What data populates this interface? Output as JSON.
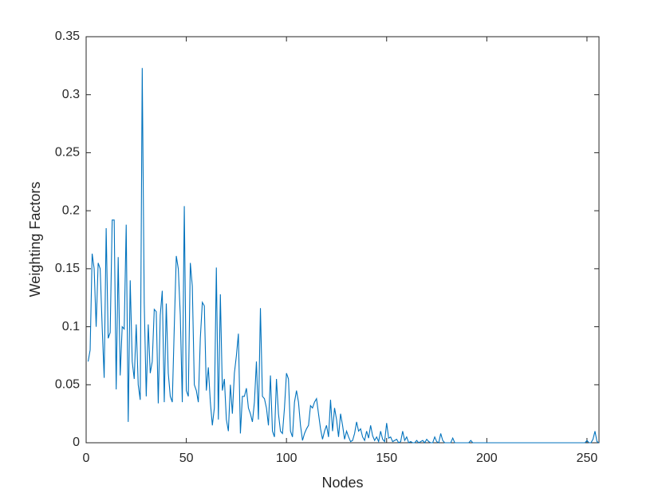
{
  "chart_data": {
    "type": "line",
    "xlabel": "Nodes",
    "ylabel": "Weighting Factors",
    "xlim": [
      0,
      256
    ],
    "ylim": [
      0,
      0.35
    ],
    "xticks": [
      0,
      50,
      100,
      150,
      200,
      250
    ],
    "yticks": [
      0,
      0.05,
      0.1,
      0.15,
      0.2,
      0.25,
      0.3,
      0.35
    ],
    "grid": false,
    "x": [
      1,
      2,
      3,
      4,
      5,
      6,
      7,
      8,
      9,
      10,
      11,
      12,
      13,
      14,
      15,
      16,
      17,
      18,
      19,
      20,
      21,
      22,
      23,
      24,
      25,
      26,
      27,
      28,
      29,
      30,
      31,
      32,
      33,
      34,
      35,
      36,
      37,
      38,
      39,
      40,
      41,
      42,
      43,
      44,
      45,
      46,
      47,
      48,
      49,
      50,
      51,
      52,
      53,
      54,
      55,
      56,
      57,
      58,
      59,
      60,
      61,
      62,
      63,
      64,
      65,
      66,
      67,
      68,
      69,
      70,
      71,
      72,
      73,
      74,
      75,
      76,
      77,
      78,
      79,
      80,
      81,
      82,
      83,
      84,
      85,
      86,
      87,
      88,
      89,
      90,
      91,
      92,
      93,
      94,
      95,
      96,
      97,
      98,
      99,
      100,
      101,
      102,
      103,
      104,
      105,
      106,
      107,
      108,
      109,
      110,
      111,
      112,
      113,
      114,
      115,
      116,
      117,
      118,
      119,
      120,
      121,
      122,
      123,
      124,
      125,
      126,
      127,
      128,
      129,
      130,
      131,
      132,
      133,
      134,
      135,
      136,
      137,
      138,
      139,
      140,
      141,
      142,
      143,
      144,
      145,
      146,
      147,
      148,
      149,
      150,
      151,
      152,
      153,
      154,
      155,
      156,
      157,
      158,
      159,
      160,
      161,
      162,
      163,
      164,
      165,
      166,
      167,
      168,
      169,
      170,
      171,
      172,
      173,
      174,
      175,
      176,
      177,
      178,
      179,
      180,
      181,
      182,
      183,
      184,
      185,
      186,
      187,
      188,
      189,
      190,
      191,
      192,
      193,
      194,
      195,
      196,
      197,
      198,
      199,
      200,
      201,
      202,
      203,
      204,
      205,
      206,
      207,
      208,
      209,
      210,
      211,
      212,
      213,
      214,
      215,
      216,
      217,
      218,
      219,
      220,
      221,
      222,
      223,
      224,
      225,
      226,
      227,
      228,
      229,
      230,
      231,
      232,
      233,
      234,
      235,
      236,
      237,
      238,
      239,
      240,
      241,
      242,
      243,
      244,
      245,
      246,
      247,
      248,
      249,
      250,
      251,
      252,
      253,
      254,
      255,
      256
    ],
    "series": [
      {
        "color": "#0072bd",
        "values": [
          0.07,
          0.08,
          0.163,
          0.15,
          0.1,
          0.155,
          0.15,
          0.1,
          0.056,
          0.185,
          0.09,
          0.095,
          0.192,
          0.192,
          0.046,
          0.16,
          0.058,
          0.1,
          0.098,
          0.188,
          0.018,
          0.14,
          0.07,
          0.055,
          0.102,
          0.05,
          0.037,
          0.323,
          0.12,
          0.04,
          0.102,
          0.06,
          0.07,
          0.115,
          0.113,
          0.034,
          0.11,
          0.131,
          0.035,
          0.12,
          0.06,
          0.04,
          0.035,
          0.1,
          0.161,
          0.15,
          0.11,
          0.035,
          0.204,
          0.045,
          0.04,
          0.155,
          0.135,
          0.05,
          0.045,
          0.035,
          0.09,
          0.121,
          0.118,
          0.045,
          0.065,
          0.035,
          0.015,
          0.03,
          0.151,
          0.02,
          0.128,
          0.045,
          0.055,
          0.02,
          0.01,
          0.05,
          0.025,
          0.06,
          0.075,
          0.094,
          0.008,
          0.04,
          0.04,
          0.047,
          0.03,
          0.025,
          0.018,
          0.035,
          0.07,
          0.02,
          0.116,
          0.04,
          0.038,
          0.03,
          0.015,
          0.058,
          0.01,
          0.005,
          0.055,
          0.025,
          0.01,
          0.008,
          0.03,
          0.06,
          0.055,
          0.01,
          0.005,
          0.035,
          0.045,
          0.035,
          0.015,
          0.002,
          0.008,
          0.012,
          0.015,
          0.032,
          0.03,
          0.035,
          0.038,
          0.025,
          0.012,
          0.003,
          0.01,
          0.015,
          0.005,
          0.037,
          0.01,
          0.03,
          0.02,
          0.005,
          0.025,
          0.015,
          0.003,
          0.01,
          0.005,
          0.001,
          0.002,
          0.008,
          0.018,
          0.01,
          0.012,
          0.005,
          0.002,
          0.01,
          0.004,
          0.015,
          0.006,
          0.002,
          0.005,
          0.001,
          0.01,
          0.003,
          0.001,
          0.017,
          0.004,
          0.005,
          0.001,
          0.002,
          0.003,
          0,
          0.001,
          0.01,
          0.002,
          0.005,
          0,
          0.001,
          0,
          0,
          0.002,
          0,
          0.001,
          0.002,
          0,
          0.003,
          0.001,
          0,
          0,
          0.005,
          0.001,
          0,
          0.008,
          0.002,
          0,
          0,
          0,
          0,
          0.004,
          0,
          0,
          0,
          0,
          0,
          0,
          0,
          0,
          0.002,
          0,
          0,
          0,
          0,
          0,
          0,
          0,
          0,
          0,
          0,
          0,
          0,
          0,
          0,
          0,
          0,
          0,
          0,
          0,
          0,
          0,
          0,
          0,
          0,
          0,
          0,
          0,
          0,
          0,
          0,
          0,
          0,
          0,
          0,
          0,
          0,
          0,
          0,
          0,
          0,
          0,
          0,
          0,
          0,
          0,
          0,
          0,
          0,
          0,
          0,
          0,
          0,
          0,
          0,
          0,
          0,
          0,
          0.002,
          0,
          0,
          0.003,
          0.01,
          0.001,
          0
        ]
      }
    ]
  }
}
